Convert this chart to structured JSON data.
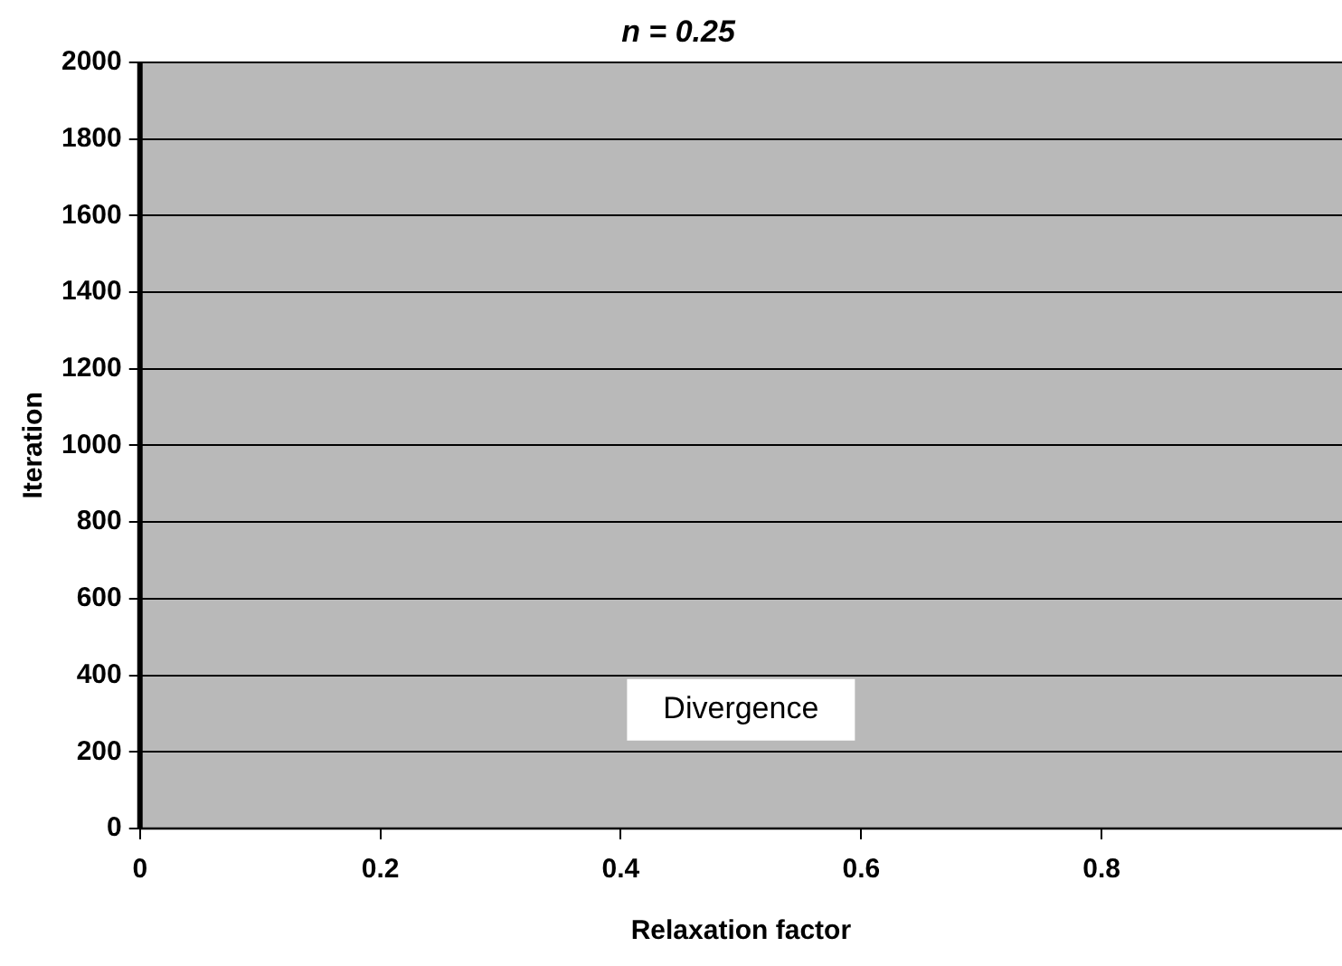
{
  "chart_data": {
    "type": "line",
    "title": "n = 0.25",
    "xlabel": "Relaxation factor",
    "ylabel": "Iteration",
    "xlim": [
      0,
      1
    ],
    "xticks": [
      0,
      0.2,
      0.4,
      0.6,
      0.8
    ],
    "ylim": [
      0,
      2000
    ],
    "yticks": [
      0,
      200,
      400,
      600,
      800,
      1000,
      1200,
      1400,
      1600,
      1800,
      2000
    ],
    "grid": "y",
    "legend": false,
    "bands": [
      {
        "axis": "x",
        "from": 0,
        "to": 1,
        "label": "Divergence",
        "color": "#b9b9b9"
      }
    ]
  }
}
